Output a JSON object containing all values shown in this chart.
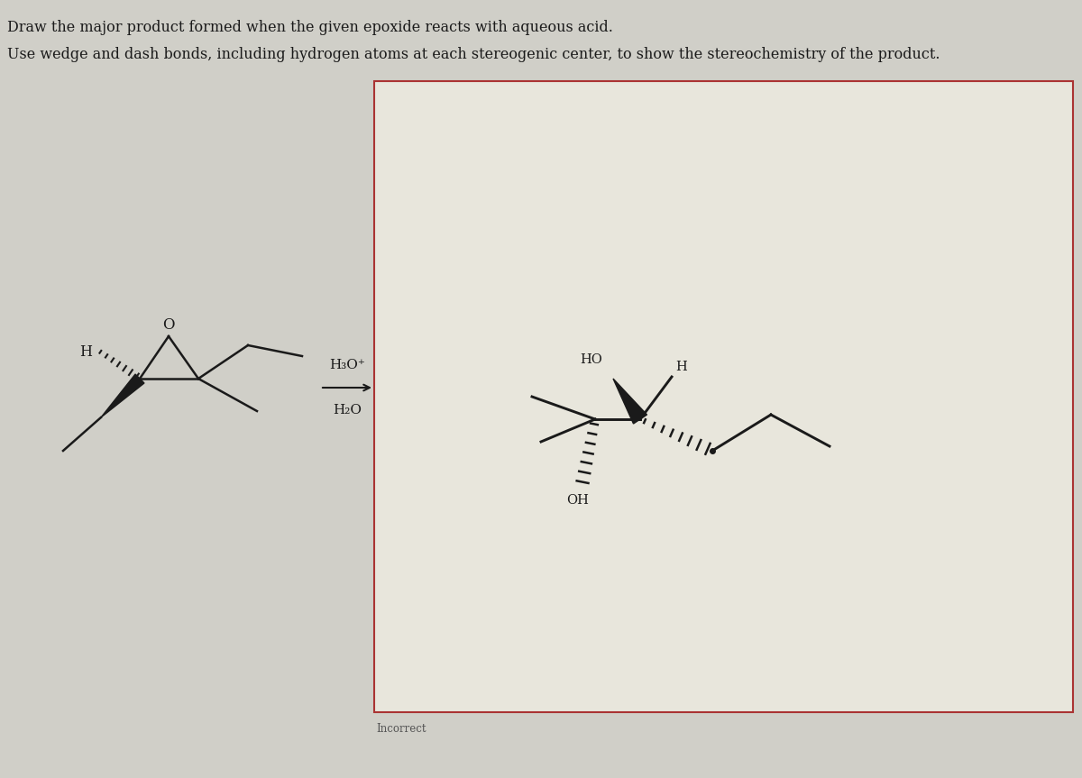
{
  "bg_color": "#d0cfc8",
  "box_bg_color": "#e8e6dc",
  "box_border_color": "#aa3333",
  "title_line1": "Draw the major product formed when the given epoxide reacts with aqueous acid.",
  "title_line2": "Use wedge and dash bonds, including hydrogen atoms at each stereogenic center, to show the stereochemistry of the product.",
  "reagent_label1": "H₃O⁺",
  "reagent_label2": "H₂O",
  "incorrect_label": "Incorrect",
  "text_color": "#1a1a1a",
  "bond_color": "#1a1a1a"
}
